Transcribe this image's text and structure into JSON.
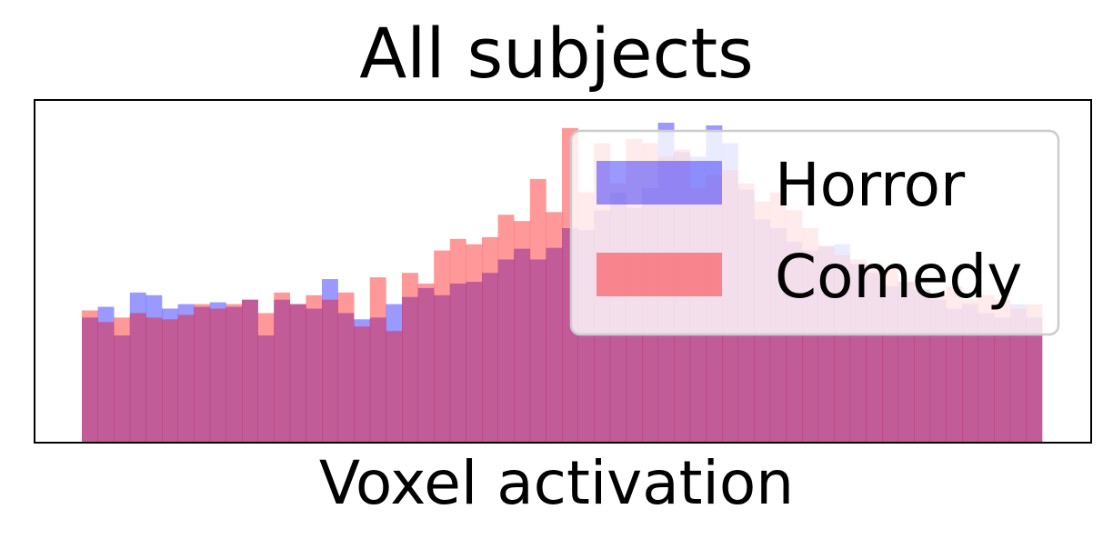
{
  "chart_data": {
    "type": "bar",
    "title": "All subjects",
    "xlabel": "Voxel activation",
    "ylabel": "",
    "x_ticks_shown": false,
    "y_ticks_shown": false,
    "grid": false,
    "legend_position": "top-right",
    "bins": 60,
    "series": [
      {
        "name": "Horror",
        "color": "#0000ff",
        "alpha": 0.4,
        "values": [
          140,
          152,
          120,
          168,
          165,
          150,
          155,
          152,
          157,
          152,
          160,
          120,
          160,
          155,
          150,
          183,
          145,
          138,
          140,
          155,
          163,
          173,
          165,
          178,
          180,
          190,
          205,
          217,
          205,
          218,
          240,
          238,
          260,
          280,
          263,
          285,
          358,
          325,
          320,
          355,
          335,
          283,
          250,
          240,
          225,
          215,
          220,
          222,
          200,
          190,
          175,
          180,
          172,
          160,
          150,
          155,
          145,
          140,
          155,
          140
        ]
      },
      {
        "name": "Comedy",
        "color": "#ff0000",
        "alpha": 0.4,
        "values": [
          148,
          135,
          140,
          145,
          140,
          138,
          143,
          155,
          150,
          155,
          160,
          145,
          168,
          155,
          165,
          160,
          168,
          130,
          185,
          125,
          190,
          178,
          215,
          228,
          222,
          230,
          255,
          248,
          295,
          258,
          352,
          280,
          335,
          290,
          340,
          335,
          320,
          328,
          285,
          300,
          305,
          290,
          270,
          280,
          260,
          240,
          220,
          210,
          205,
          200,
          195,
          180,
          170,
          165,
          175,
          160,
          165,
          160,
          150,
          155
        ]
      }
    ]
  }
}
